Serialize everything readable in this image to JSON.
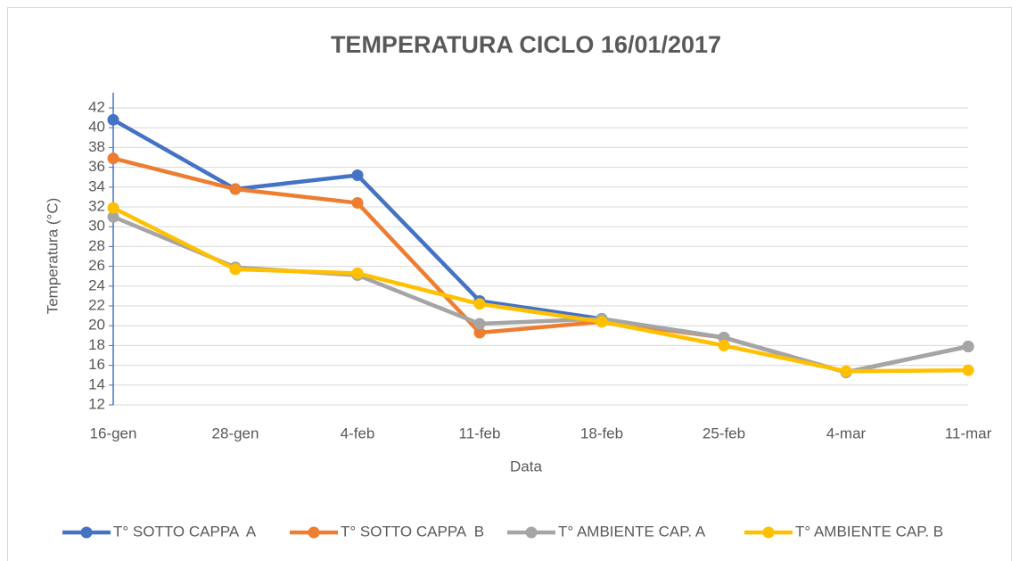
{
  "chart_data": {
    "type": "line",
    "title": "TEMPERATURA CICLO 16/01/2017",
    "x_label": "Data",
    "y_label": "Temperatura (°C)",
    "categories": [
      "16-gen",
      "28-gen",
      "4-feb",
      "11-feb",
      "18-feb",
      "25-feb",
      "4-mar",
      "11-mar"
    ],
    "series": [
      {
        "name": "T° SOTTO CAPPA  A",
        "color": "#4472c4",
        "values": [
          40.8,
          33.8,
          35.2,
          22.5,
          20.7,
          18.8,
          15.3,
          17.9
        ]
      },
      {
        "name": "T° SOTTO CAPPA  B",
        "color": "#ed7d31",
        "values": [
          36.9,
          33.8,
          32.4,
          19.3,
          20.4,
          18.8,
          15.3,
          17.9
        ]
      },
      {
        "name": "T° AMBIENTE CAP. A",
        "color": "#a5a5a5",
        "values": [
          31.0,
          25.9,
          25.1,
          20.2,
          20.7,
          18.8,
          15.3,
          17.9
        ]
      },
      {
        "name": "T° AMBIENTE CAP. B",
        "color": "#ffc000",
        "values": [
          31.9,
          25.7,
          25.3,
          22.2,
          20.4,
          18.0,
          15.4,
          15.5
        ]
      }
    ],
    "ylim": [
      12,
      42
    ],
    "yticks": [
      12,
      14,
      16,
      18,
      20,
      22,
      24,
      26,
      28,
      30,
      32,
      34,
      36,
      38,
      40,
      42
    ],
    "grid": true,
    "legend": "bottom"
  }
}
